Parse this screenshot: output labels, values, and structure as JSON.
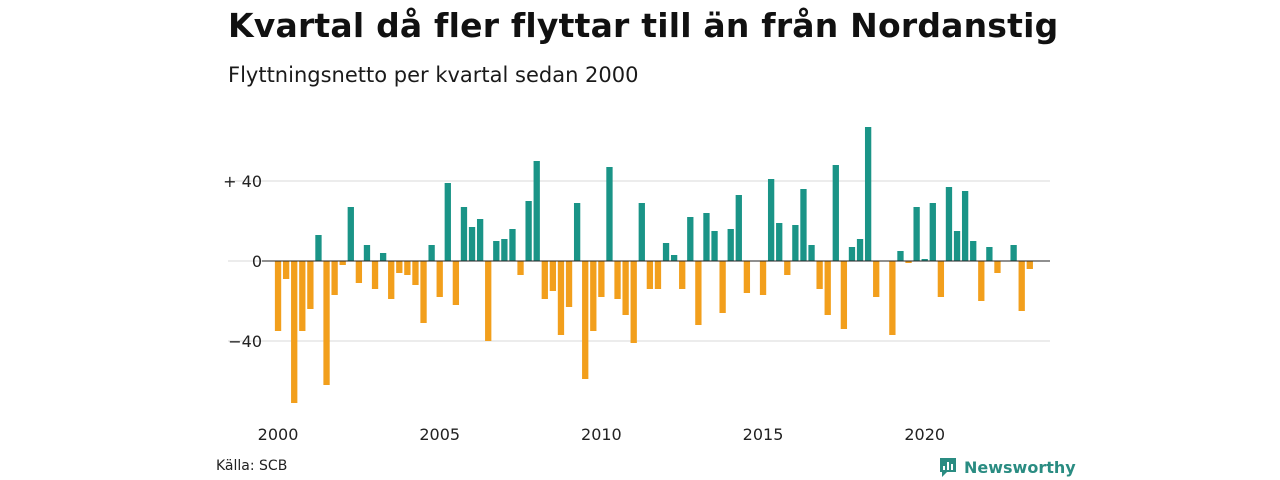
{
  "title": "Kvartal då fler flyttar till än från Nordanstig",
  "subtitle": "Flyttningsnetto per kvartal sedan 2000",
  "source": "Källa: SCB",
  "brand": "Newsworthy",
  "colors": {
    "positive": "#1a9487",
    "negative": "#f29f1c",
    "grid": "#d9d9d9",
    "brand": "#2a8c82"
  },
  "chart_data": {
    "type": "bar",
    "title": "Kvartal då fler flyttar till än från Nordanstig",
    "subtitle": "Flyttningsnetto per kvartal sedan 2000",
    "xlabel": "",
    "ylabel": "",
    "ylim": [
      -75,
      67
    ],
    "grid": true,
    "ytick_values": [
      40,
      0,
      -40
    ],
    "ytick_labels": [
      "+ 40",
      "0",
      "−40"
    ],
    "xtick_labels": [
      "2000",
      "2005",
      "2010",
      "2015",
      "2020"
    ],
    "categories": [
      "2000K1",
      "2000K2",
      "2000K3",
      "2000K4",
      "2001K1",
      "2001K2",
      "2001K3",
      "2001K4",
      "2002K1",
      "2002K2",
      "2002K3",
      "2002K4",
      "2003K1",
      "2003K2",
      "2003K3",
      "2003K4",
      "2004K1",
      "2004K2",
      "2004K3",
      "2004K4",
      "2005K1",
      "2005K2",
      "2005K3",
      "2005K4",
      "2006K1",
      "2006K2",
      "2006K3",
      "2006K4",
      "2007K1",
      "2007K2",
      "2007K3",
      "2007K4",
      "2008K1",
      "2008K2",
      "2008K3",
      "2008K4",
      "2009K1",
      "2009K2",
      "2009K3",
      "2009K4",
      "2010K1",
      "2010K2",
      "2010K3",
      "2010K4",
      "2011K1",
      "2011K2",
      "2011K3",
      "2011K4",
      "2012K1",
      "2012K2",
      "2012K3",
      "2012K4",
      "2013K1",
      "2013K2",
      "2013K3",
      "2013K4",
      "2014K1",
      "2014K2",
      "2014K3",
      "2014K4",
      "2015K1",
      "2015K2",
      "2015K3",
      "2015K4",
      "2016K1",
      "2016K2",
      "2016K3",
      "2016K4",
      "2017K1",
      "2017K2",
      "2017K3",
      "2017K4",
      "2018K1",
      "2018K2",
      "2018K3",
      "2018K4",
      "2019K1",
      "2019K2",
      "2019K3",
      "2019K4",
      "2020K1",
      "2020K2",
      "2020K3",
      "2020K4",
      "2021K1",
      "2021K2",
      "2021K3",
      "2021K4",
      "2022K1",
      "2022K2",
      "2022K3",
      "2022K4",
      "2023K1",
      "2023K2",
      "2023K3",
      "2023K4"
    ],
    "values": [
      -35,
      -9,
      -71,
      -35,
      -24,
      13,
      -62,
      -17,
      -2,
      27,
      -11,
      8,
      -14,
      4,
      -19,
      -6,
      -7,
      -12,
      -31,
      8,
      -18,
      39,
      -22,
      27,
      17,
      21,
      -40,
      10,
      11,
      16,
      -7,
      30,
      50,
      -19,
      -15,
      -37,
      -23,
      29,
      -59,
      -35,
      -18,
      47,
      -19,
      -27,
      -41,
      29,
      -14,
      -14,
      9,
      3,
      -14,
      22,
      -32,
      24,
      15,
      -26,
      16,
      33,
      -16,
      0,
      -17,
      41,
      19,
      -7,
      18,
      36,
      8,
      -14,
      -27,
      48,
      -34,
      7,
      11,
      67,
      -18,
      0,
      -37,
      5,
      -1,
      27,
      1,
      29,
      -18,
      37,
      15,
      35,
      10,
      -20,
      7,
      -6,
      0,
      8,
      -25,
      -4,
      0,
      0
    ]
  }
}
